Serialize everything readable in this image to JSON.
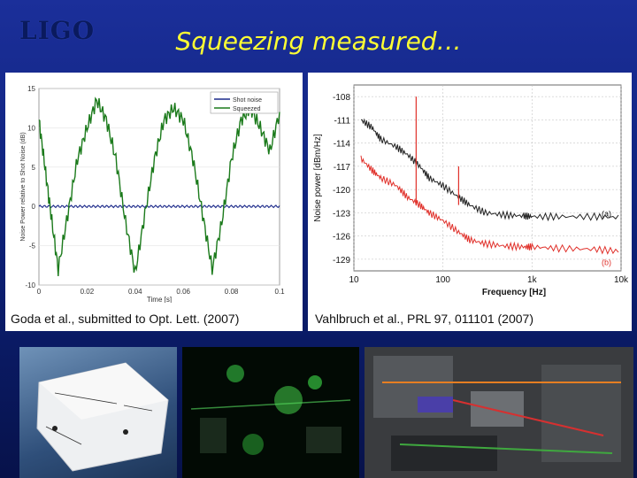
{
  "slide": {
    "logo_text": "LIGO",
    "title": "Squeezing measured…"
  },
  "left_panel": {
    "caption": "Goda et al., submitted to Opt. Lett. (2007)"
  },
  "right_panel": {
    "caption": "Vahlbruch et al., PRL 97, 011101 (2007)"
  },
  "chart_data": [
    {
      "type": "line",
      "title": "",
      "xlabel": "Time [s]",
      "ylabel": "Noise Power relative to Shot Noise (dB)",
      "xlim": [
        0,
        0.1
      ],
      "ylim": [
        -10,
        15
      ],
      "x_ticks": [
        "0",
        "0.02",
        "0.04",
        "0.06",
        "0.08",
        "0.1"
      ],
      "y_ticks": [
        "15",
        "10",
        "5",
        "0",
        "-5",
        "-10"
      ],
      "legend_position": "top-right",
      "colors": {
        "shot": "#1c2a8c",
        "squeezed": "#1b7a1b"
      },
      "series": [
        {
          "name": "Shot noise",
          "x": [
            0,
            0.1
          ],
          "y": [
            0,
            0
          ]
        },
        {
          "name": "Squeezed",
          "x": [
            0,
            0.0025,
            0.005,
            0.008,
            0.012,
            0.016,
            0.02,
            0.024,
            0.028,
            0.032,
            0.036,
            0.04,
            0.044,
            0.048,
            0.052,
            0.056,
            0.06,
            0.064,
            0.068,
            0.072,
            0.076,
            0.08,
            0.084,
            0.088,
            0.092,
            0.096,
            0.1
          ],
          "y": [
            11,
            5,
            -1,
            -8,
            -1,
            6,
            10,
            13.5,
            11,
            6,
            -2,
            -8.5,
            -1,
            6,
            11,
            12.5,
            11,
            6,
            -1,
            -8,
            -2,
            6,
            11,
            12.5,
            10,
            7,
            12
          ]
        }
      ]
    },
    {
      "type": "line",
      "title": "",
      "xlabel": "Frequency [Hz]",
      "ylabel": "Noise power [dBm/Hz]",
      "xscale": "log",
      "xlim": [
        10,
        10000
      ],
      "ylim": [
        -130.5,
        -106.5
      ],
      "x_ticks": [
        "10",
        "100",
        "1k",
        "10k"
      ],
      "y_ticks": [
        "-108",
        "-111",
        "-114",
        "-117",
        "-120",
        "-123",
        "-126",
        "-129"
      ],
      "annotations": [
        "(a)",
        "(b)"
      ],
      "colors": {
        "a": "#222222",
        "b": "#e0302a"
      },
      "series": [
        {
          "name": "(a)",
          "x": [
            12,
            16,
            20,
            30,
            40,
            55,
            70,
            100,
            150,
            200,
            300,
            500,
            800,
            1000,
            2000,
            5000,
            10000
          ],
          "y": [
            -111,
            -112,
            -113.5,
            -114.5,
            -115.5,
            -117,
            -118.5,
            -119.5,
            -121,
            -122,
            -123,
            -123.3,
            -123.4,
            -123.5,
            -123.5,
            -123.5,
            -123.6
          ]
        },
        {
          "name": "(b)",
          "x": [
            12,
            16,
            20,
            30,
            40,
            55,
            70,
            100,
            150,
            200,
            300,
            500,
            800,
            1000,
            2000,
            5000,
            10000
          ],
          "y": [
            -116,
            -117.5,
            -118.5,
            -119.5,
            -121,
            -122,
            -123,
            -124,
            -125.5,
            -126.5,
            -127,
            -127.3,
            -127.4,
            -127.4,
            -127.6,
            -127.7,
            -128
          ]
        }
      ]
    }
  ]
}
